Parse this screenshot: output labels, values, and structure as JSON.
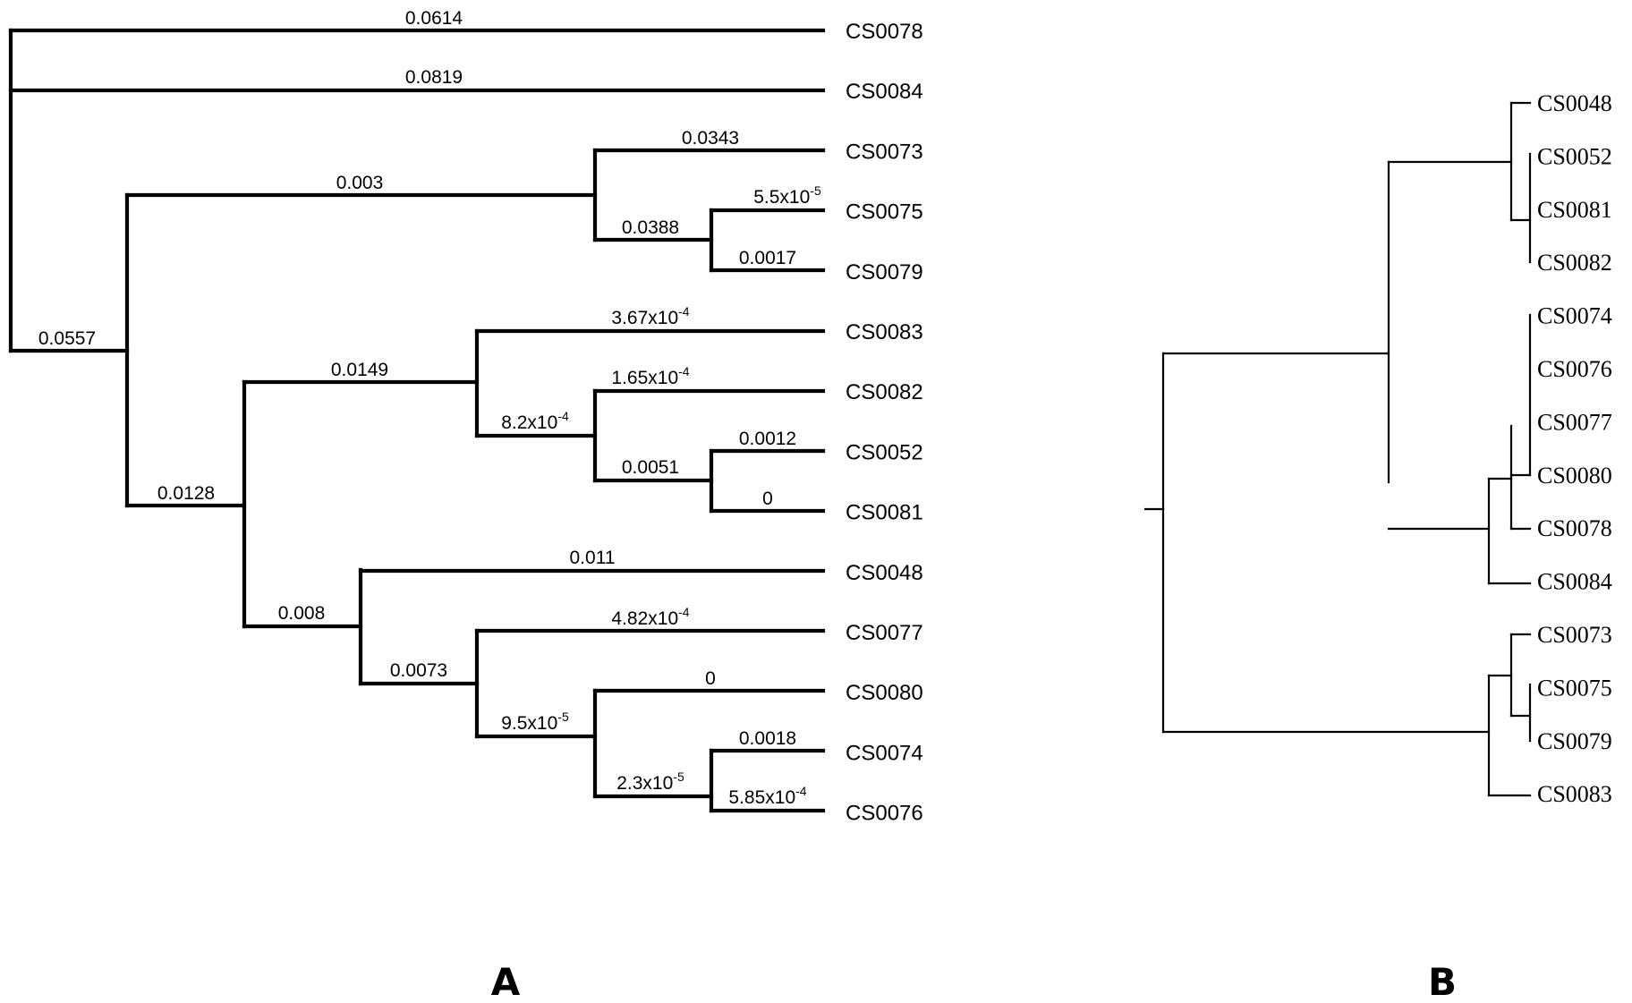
{
  "panels": {
    "a": "A",
    "b": "B"
  },
  "tree_a": {
    "tips": [
      "CS0078",
      "CS0084",
      "CS0073",
      "CS0075",
      "CS0079",
      "CS0083",
      "CS0082",
      "CS0052",
      "CS0081",
      "CS0048",
      "CS0077",
      "CS0080",
      "CS0074",
      "CS0076"
    ],
    "branch_labels": [
      {
        "text": "0.0614"
      },
      {
        "text": "0.0819"
      },
      {
        "text": "0.0343"
      },
      {
        "text": "0.003"
      },
      {
        "text": "5.5x10",
        "sup": "-5"
      },
      {
        "text": "0.0388"
      },
      {
        "text": "0.0017"
      },
      {
        "text": "0.0557"
      },
      {
        "text": "3.67x10",
        "sup": "-4"
      },
      {
        "text": "0.0149"
      },
      {
        "text": "1.65x10",
        "sup": "-4"
      },
      {
        "text": "8.2x10",
        "sup": "-4"
      },
      {
        "text": "0.0012"
      },
      {
        "text": "0.0051"
      },
      {
        "text": "0"
      },
      {
        "text": "0.0128"
      },
      {
        "text": "0.011"
      },
      {
        "text": "0.008"
      },
      {
        "text": "4.82x10",
        "sup": "-4"
      },
      {
        "text": "0.0073"
      },
      {
        "text": "0"
      },
      {
        "text": "9.5x10",
        "sup": "-5"
      },
      {
        "text": "0.0018"
      },
      {
        "text": "2.3x10",
        "sup": "-5"
      },
      {
        "text": "5.85x10",
        "sup": "-4"
      }
    ]
  },
  "tree_b": {
    "tips": [
      "CS0048",
      "CS0052",
      "CS0081",
      "CS0082",
      "CS0074",
      "CS0076",
      "CS0077",
      "CS0080",
      "CS0078",
      "CS0084",
      "CS0073",
      "CS0075",
      "CS0079",
      "CS0083"
    ]
  }
}
